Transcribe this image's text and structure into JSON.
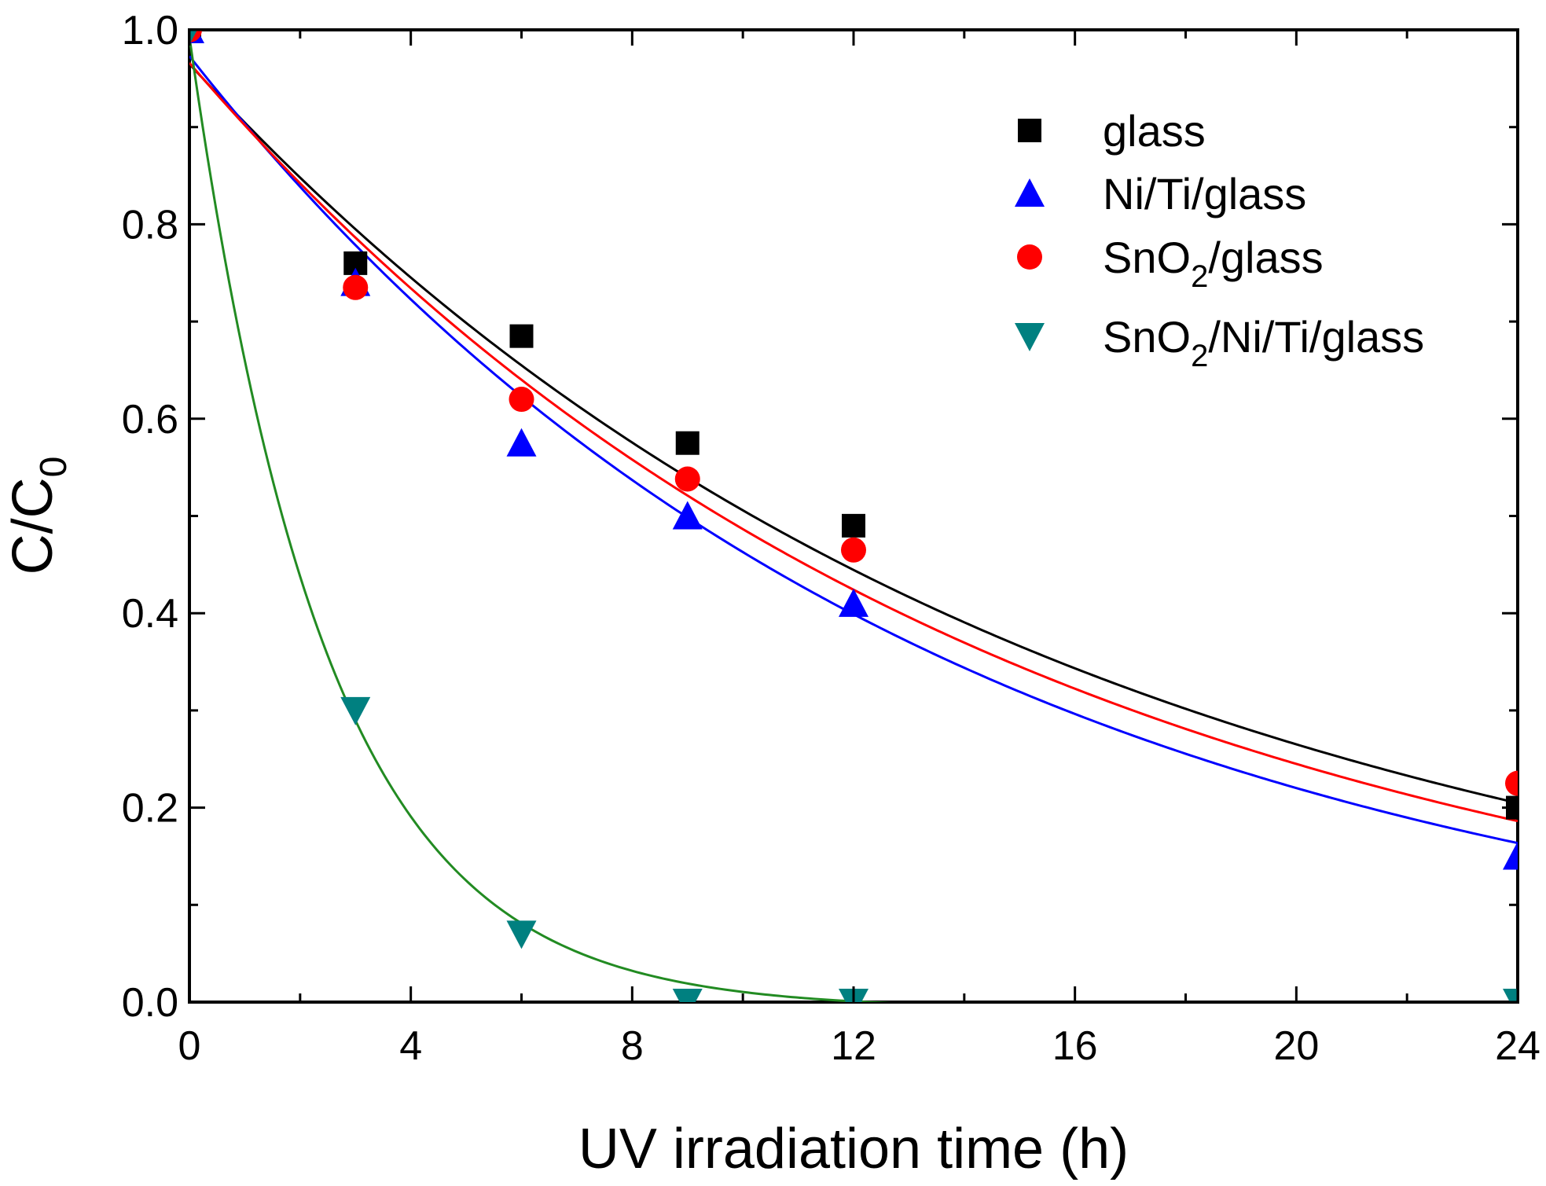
{
  "chart_data": {
    "type": "scatter",
    "title": "",
    "xlabel": "UV irradiation time (h)",
    "ylabel": {
      "main": "C/C",
      "sub": "0"
    },
    "xlim": [
      0,
      24
    ],
    "ylim": [
      0,
      1.0
    ],
    "x_ticks": [
      0,
      4,
      8,
      12,
      16,
      20,
      24
    ],
    "x_tick_labels": [
      "0",
      "4",
      "8",
      "12",
      "16",
      "20",
      "24"
    ],
    "x_minor_step": 2,
    "y_ticks": [
      0.0,
      0.2,
      0.4,
      0.6,
      0.8,
      1.0
    ],
    "y_tick_labels": [
      "0.0",
      "0.2",
      "0.4",
      "0.6",
      "0.8",
      "1.0"
    ],
    "y_minor_step": 0.1,
    "grid": false,
    "legend_position": "top-right",
    "series": [
      {
        "name": "glass",
        "legend": {
          "base": "glass"
        },
        "marker": "square",
        "color": "#000000",
        "x": [
          0,
          3,
          6,
          9,
          12,
          24
        ],
        "y": [
          1.0,
          0.76,
          0.685,
          0.575,
          0.49,
          0.2
        ],
        "fit": {
          "a": 0.965,
          "k": 0.0646,
          "color": "#000000"
        }
      },
      {
        "name": "Ni/Ti/glass",
        "legend": {
          "base": "Ni/Ti/glass"
        },
        "marker": "triangle-up",
        "color": "#0000ff",
        "x": [
          0,
          3,
          6,
          9,
          12,
          24
        ],
        "y": [
          1.0,
          0.74,
          0.575,
          0.5,
          0.41,
          0.15
        ],
        "fit": {
          "a": 0.973,
          "k": 0.0743,
          "color": "#0000ff"
        }
      },
      {
        "name": "SnO2/glass",
        "legend": {
          "base": "SnO",
          "sub": "2",
          "rest": "/glass"
        },
        "marker": "circle",
        "color": "#ff0000",
        "x": [
          0,
          3,
          6,
          9,
          12,
          24
        ],
        "y": [
          1.0,
          0.735,
          0.62,
          0.538,
          0.465,
          0.225
        ],
        "fit": {
          "a": 0.966,
          "k": 0.0686,
          "color": "#ff0000"
        }
      },
      {
        "name": "SnO2/Ni/Ti/glass",
        "legend": {
          "base": "SnO",
          "sub": "2",
          "rest": "/Ni/Ti/glass"
        },
        "marker": "triangle-down",
        "color": "#008080",
        "x": [
          0,
          3,
          6,
          9,
          12,
          24
        ],
        "y": [
          1.0,
          0.3,
          0.07,
          0.0,
          0.0,
          0.0
        ],
        "fit": {
          "a": 1.0,
          "k": 0.405,
          "c": -0.007,
          "color": "#228B22"
        }
      }
    ]
  }
}
